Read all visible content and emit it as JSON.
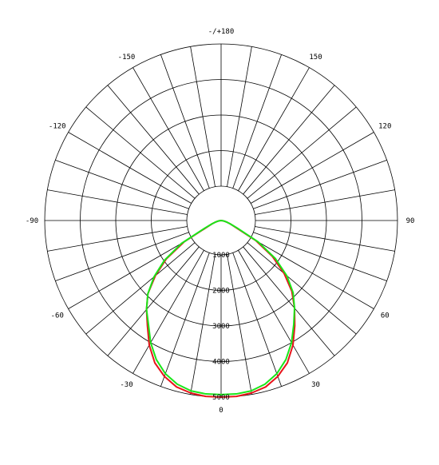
{
  "chart_data": {
    "type": "polar",
    "title": "",
    "angle_unit": "degrees",
    "zero_direction": "down",
    "angle_ticks": [
      {
        "label": "0",
        "angle": 0
      },
      {
        "label": "30",
        "angle": 30
      },
      {
        "label": "60",
        "angle": 60
      },
      {
        "label": "90",
        "angle": 90
      },
      {
        "label": "120",
        "angle": 120
      },
      {
        "label": "150",
        "angle": 150
      },
      {
        "label": "-/+180",
        "angle": 180
      },
      {
        "label": "-150",
        "angle": -150
      },
      {
        "label": "-120",
        "angle": -120
      },
      {
        "label": "-90",
        "angle": -90
      },
      {
        "label": "-60",
        "angle": -60
      },
      {
        "label": "-30",
        "angle": -30
      }
    ],
    "radial_ticks": [
      1000,
      2000,
      3000,
      4000,
      5000
    ],
    "radial_labels": [
      "1000",
      "2000",
      "3000",
      "4000",
      "5000"
    ],
    "rmax": 5000,
    "spoke_step_deg": 10,
    "grid": true,
    "colors": {
      "series1": "#e8151b",
      "series2": "#19e619",
      "grid": "#000000"
    },
    "series": [
      {
        "color": "#e8151b",
        "angles": [
          -90,
          -85,
          -80,
          -75,
          -70,
          -65,
          -60,
          -55,
          -50,
          -45,
          -40,
          -35,
          -30,
          -25,
          -20,
          -15,
          -10,
          -5,
          0,
          5,
          10,
          15,
          20,
          25,
          30,
          35,
          40,
          45,
          50,
          55,
          60,
          65,
          70,
          75,
          80,
          85,
          90
        ],
        "values": [
          0,
          20,
          80,
          160,
          280,
          460,
          1240,
          1920,
          2450,
          2950,
          3300,
          3650,
          4080,
          4450,
          4700,
          4880,
          4960,
          5000,
          5000,
          5000,
          4960,
          4880,
          4700,
          4450,
          4080,
          3650,
          3250,
          2850,
          2350,
          1800,
          1160,
          460,
          280,
          160,
          80,
          20,
          0
        ]
      },
      {
        "color": "#19e619",
        "angles": [
          -90,
          -85,
          -80,
          -75,
          -70,
          -65,
          -60,
          -55,
          -50,
          -45,
          -40,
          -35,
          -30,
          -25,
          -20,
          -15,
          -10,
          -5,
          0,
          5,
          10,
          15,
          20,
          25,
          30,
          35,
          40,
          45,
          50,
          55,
          60,
          65,
          70,
          75,
          80,
          85,
          90
        ],
        "values": [
          0,
          20,
          80,
          160,
          280,
          520,
          1320,
          1980,
          2500,
          2950,
          3300,
          3600,
          4000,
          4350,
          4620,
          4800,
          4900,
          4930,
          4930,
          4930,
          4900,
          4800,
          4620,
          4350,
          4000,
          3600,
          3250,
          2900,
          2450,
          1900,
          1240,
          520,
          280,
          160,
          80,
          20,
          0
        ]
      }
    ]
  }
}
